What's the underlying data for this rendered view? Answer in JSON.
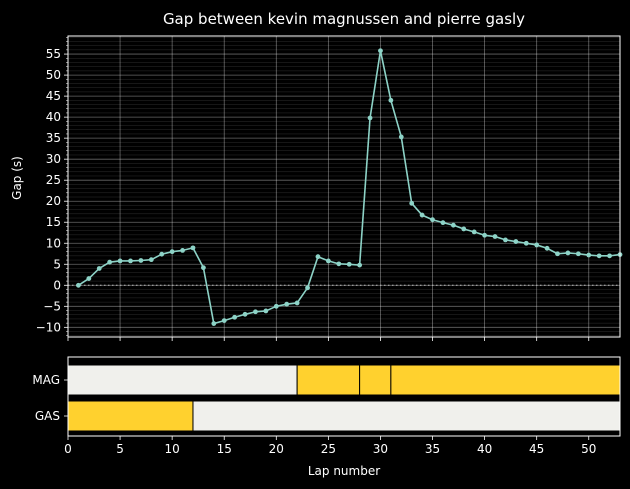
{
  "chart_data": [
    {
      "type": "line",
      "title": "Gap between kevin magnussen and pierre gasly",
      "ylabel": "Gap (s)",
      "xlim": [
        0,
        53
      ],
      "ylim": [
        -12.3,
        59.3
      ],
      "yticks": [
        -10,
        -5,
        0,
        5,
        10,
        15,
        20,
        25,
        30,
        35,
        40,
        45,
        50,
        55
      ],
      "grid": true,
      "zero_line": "dotted",
      "colors": {
        "series": "#8dd3c7",
        "background": "#000000",
        "text": "#ffffff"
      },
      "series": [
        {
          "x": [
            1,
            2,
            3,
            4,
            5,
            6,
            7,
            8,
            9,
            10,
            11,
            12,
            13,
            14,
            15,
            16,
            17,
            18,
            19,
            20,
            21,
            22,
            23,
            24,
            25,
            26,
            27,
            28,
            29,
            30,
            31,
            32,
            33,
            34,
            35,
            36,
            37,
            38,
            39,
            40,
            41,
            42,
            43,
            44,
            45,
            46,
            47,
            48,
            49,
            50,
            51,
            52,
            53
          ],
          "values": [
            0.0,
            1.6,
            4.0,
            5.5,
            5.8,
            5.8,
            5.9,
            6.1,
            7.4,
            8.0,
            8.3,
            8.9,
            4.2,
            -9.1,
            -8.4,
            -7.6,
            -6.9,
            -6.3,
            -6.1,
            -5.0,
            -4.5,
            -4.2,
            -0.6,
            6.8,
            5.8,
            5.1,
            5.0,
            4.8,
            39.8,
            55.8,
            44.0,
            35.3,
            19.5,
            16.7,
            15.6,
            14.9,
            14.3,
            13.4,
            12.7,
            11.9,
            11.6,
            10.8,
            10.4,
            10.0,
            9.6,
            8.8,
            7.5,
            7.7,
            7.5,
            7.2,
            7.0,
            7.0,
            7.3
          ]
        }
      ]
    },
    {
      "type": "bar",
      "orientation": "horizontal",
      "xlabel": "Lap number",
      "xlim": [
        0,
        53
      ],
      "xticks": [
        0,
        5,
        10,
        15,
        20,
        25,
        30,
        35,
        40,
        45,
        50
      ],
      "categories": [
        "MAG",
        "GAS"
      ],
      "colors": {
        "yellow": "#ffd12e",
        "white": "#f0f0ec"
      },
      "stints": {
        "MAG": [
          {
            "start": 0,
            "end": 22,
            "color": "white"
          },
          {
            "start": 22,
            "end": 28,
            "color": "yellow"
          },
          {
            "start": 28,
            "end": 31,
            "color": "yellow"
          },
          {
            "start": 31,
            "end": 53,
            "color": "yellow"
          }
        ],
        "GAS": [
          {
            "start": 0,
            "end": 12,
            "color": "yellow"
          },
          {
            "start": 12,
            "end": 53,
            "color": "white"
          }
        ]
      }
    }
  ]
}
